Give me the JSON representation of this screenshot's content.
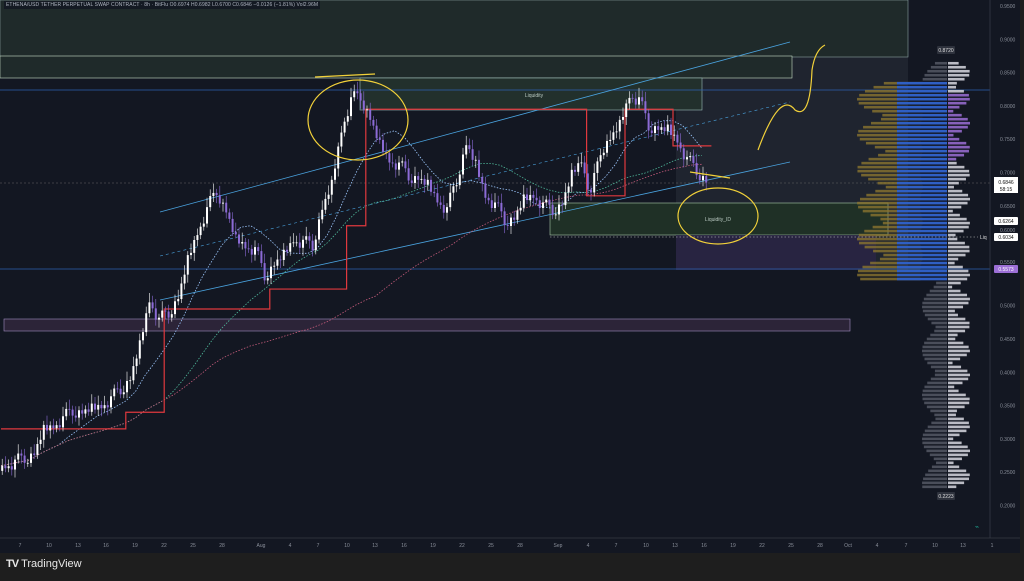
{
  "header": {
    "title": "ETHENA/USD TETHER PERPETUAL SWAP CONTRACT · 8h · BitFlu",
    "ohlc": "O0.6974  H0.6982  L0.6700  C0.6846  −0.0126 (−1.81%)  Vol2.96M"
  },
  "footer": {
    "brand": "TradingView"
  },
  "labels": {
    "liquidity_top": "Liquidity",
    "liquidity_low": "Liquidity_ID",
    "liq": "Liq"
  },
  "price_tags": {
    "high": "0.8720",
    "last": "0.6846",
    "countdown": "58:15",
    "level1": "0.6264",
    "level2": "0.6034",
    "level3": "0.5573",
    "low": "0.2223"
  },
  "colors": {
    "bg": "#131722",
    "up": "#ffffff",
    "down": "#8c6bd6",
    "step": "#e0393e",
    "channel": "#4aa3df",
    "annot": "#f2d13a",
    "profile_blue": "#2f5fc4",
    "profile_gold": "#8a7430",
    "profile_purple": "#9c6fd6"
  },
  "chart_data": {
    "type": "candlestick",
    "title": "ETHENA/USD TETHER PERPETUAL SWAP CONTRACT",
    "ylim": [
      0.18,
      0.96
    ],
    "y_ticks": [
      "0.9500",
      "0.9000",
      "0.8500",
      "0.8000",
      "0.7500",
      "0.7000",
      "0.6500",
      "0.6000",
      "0.5500",
      "0.5000",
      "0.4500",
      "0.4000",
      "0.3500",
      "0.3000",
      "0.2500",
      "0.2000"
    ],
    "x_ticks": [
      "7",
      "10",
      "13",
      "16",
      "19",
      "22",
      "25",
      "28",
      "Aug",
      "4",
      "7",
      "10",
      "13",
      "16",
      "19",
      "22",
      "25",
      "28",
      "Sep",
      "4",
      "7",
      "10",
      "13",
      "16",
      "19",
      "22",
      "25",
      "28",
      "Oct",
      "4",
      "7",
      "10",
      "13",
      "1"
    ],
    "start_date": "Jul 5",
    "daily_close": [
      0.26,
      0.265,
      0.272,
      0.276,
      0.313,
      0.32,
      0.33,
      0.343,
      0.338,
      0.345,
      0.35,
      0.36,
      0.375,
      0.388,
      0.44,
      0.509,
      0.478,
      0.49,
      0.51,
      0.568,
      0.61,
      0.644,
      0.674,
      0.64,
      0.599,
      0.59,
      0.584,
      0.546,
      0.56,
      0.576,
      0.599,
      0.595,
      0.591,
      0.644,
      0.681,
      0.764,
      0.809,
      0.816,
      0.779,
      0.741,
      0.719,
      0.711,
      0.696,
      0.689,
      0.681,
      0.659,
      0.644,
      0.689,
      0.741,
      0.711,
      0.666,
      0.651,
      0.629,
      0.629,
      0.659,
      0.666,
      0.651,
      0.644,
      0.651,
      0.696,
      0.719,
      0.666,
      0.734,
      0.749,
      0.771,
      0.816,
      0.809,
      0.771,
      0.764,
      0.764,
      0.749,
      0.719,
      0.704,
      0.685
    ],
    "step_line": [
      0.315,
      0.315,
      0.315,
      0.315,
      0.315,
      0.315,
      0.315,
      0.315,
      0.315,
      0.315,
      0.315,
      0.315,
      0.315,
      0.34,
      0.34,
      0.34,
      0.34,
      0.495,
      0.495,
      0.495,
      0.495,
      0.495,
      0.495,
      0.495,
      0.495,
      0.495,
      0.495,
      0.495,
      0.525,
      0.525,
      0.525,
      0.525,
      0.525,
      0.525,
      0.525,
      0.525,
      0.62,
      0.62,
      0.795,
      0.795,
      0.795,
      0.795,
      0.795,
      0.795,
      0.795,
      0.795,
      0.795,
      0.795,
      0.795,
      0.795,
      0.795,
      0.795,
      0.795,
      0.795,
      0.795,
      0.795,
      0.795,
      0.795,
      0.795,
      0.795,
      0.795,
      0.665,
      0.665,
      0.665,
      0.665,
      0.795,
      0.795,
      0.795,
      0.795,
      0.795,
      0.74,
      0.74,
      0.74,
      0.74
    ]
  }
}
